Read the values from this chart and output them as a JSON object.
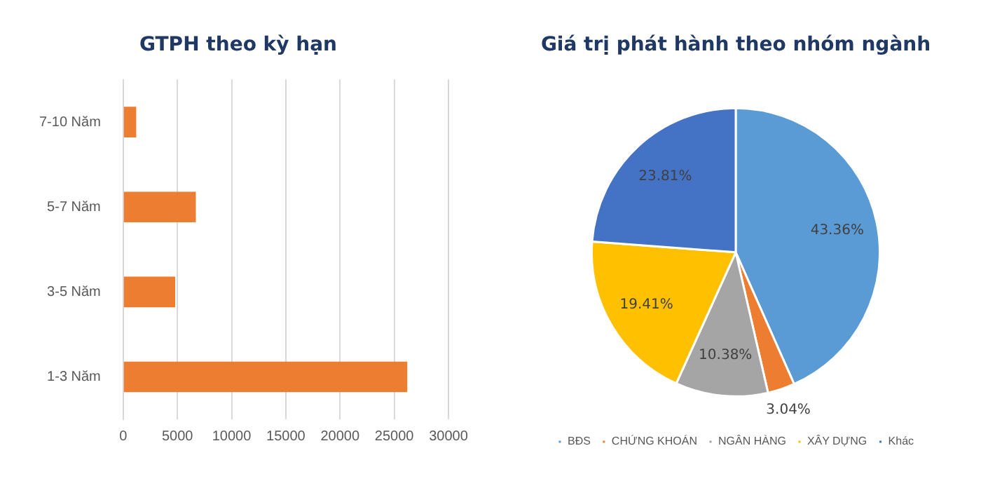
{
  "chart_data": [
    {
      "type": "bar",
      "orientation": "horizontal",
      "title": "GTPH theo kỳ hạn",
      "categories": [
        "7-10 Năm",
        "5-7 Năm",
        "3-5 Năm",
        "1-3 Năm"
      ],
      "values": [
        1200,
        6700,
        4800,
        26200
      ],
      "color": "#ed7d31",
      "xlim": [
        0,
        30000
      ],
      "xticks": [
        0,
        5000,
        10000,
        15000,
        20000,
        25000,
        30000
      ],
      "grid": "x"
    },
    {
      "type": "pie",
      "title": "Giá trị phát hành theo nhóm ngành",
      "categories": [
        "BĐS",
        "CHỨNG KHOÁN",
        "NGÂN HÀNG",
        "XÂY DỰNG",
        "Khác"
      ],
      "values": [
        43.36,
        3.04,
        10.38,
        19.41,
        23.81
      ],
      "colors": [
        "#5b9bd5",
        "#ed7d31",
        "#a5a5a5",
        "#ffc000",
        "#4472c4"
      ],
      "value_labels": [
        "43.36%",
        "3.04%",
        "10.38%",
        "19.41%",
        "23.81%"
      ],
      "legend": "bottom"
    }
  ]
}
